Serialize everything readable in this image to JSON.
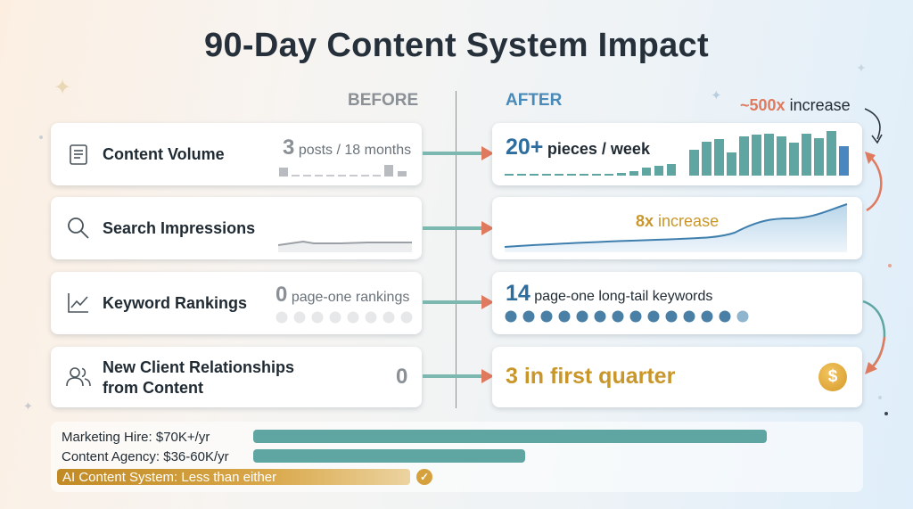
{
  "title": "90-Day Content System Impact",
  "headers": {
    "before": "BEFORE",
    "after": "AFTER"
  },
  "colors": {
    "teal": "#5fa6a3",
    "blue": "#2e6e9e",
    "gold": "#c9962a",
    "coral": "#e07a5f",
    "dark": "#1f2a33"
  },
  "rows": [
    {
      "label": "Content Volume",
      "icon": "document-icon",
      "before": {
        "number": "3",
        "text": "posts / 18 months"
      },
      "after": {
        "number": "20+",
        "text": "pieces / week"
      }
    },
    {
      "label": "Search Impressions",
      "icon": "search-icon",
      "after": {
        "annotation_number": "8x",
        "annotation_text": "increase"
      }
    },
    {
      "label": "Keyword Rankings",
      "icon": "chart-line-icon",
      "before": {
        "number": "0",
        "text": "page-one rankings"
      },
      "after": {
        "number": "14",
        "text": "page-one long-tail keywords"
      }
    },
    {
      "label_line1": "New Client Relationships",
      "label_line2": "from Content",
      "icon": "users-icon",
      "before": {
        "number": "0"
      },
      "after": {
        "text": "3 in first quarter",
        "icon": "dollar-coin-icon"
      }
    }
  ],
  "callout": {
    "number": "~500x",
    "text": "increase"
  },
  "cost_comparison": [
    {
      "label": "Marketing Hire: $70K+/yr",
      "relative_cost": 1.0
    },
    {
      "label": "Content Agency: $36-60K/yr",
      "relative_cost": 0.53
    },
    {
      "label": "AI Content System: Less than either",
      "relative_cost": 0.31,
      "highlight": true,
      "icon": "check-circle-icon"
    }
  ]
}
